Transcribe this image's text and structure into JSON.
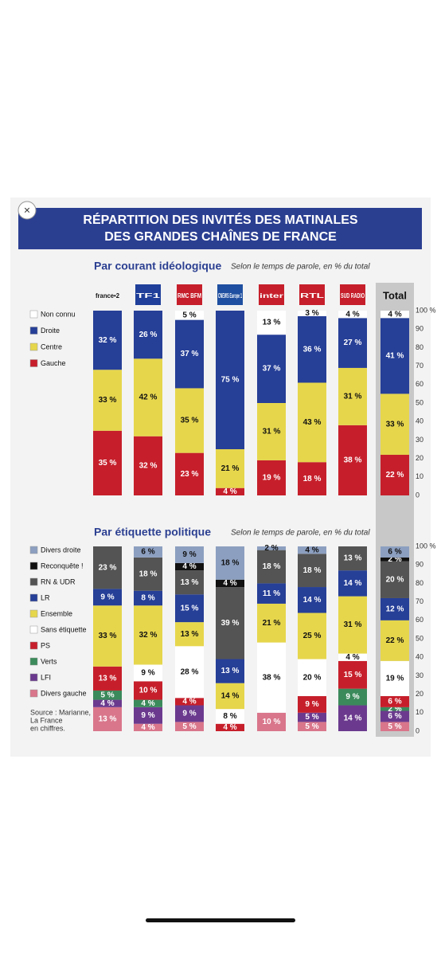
{
  "header": {
    "title": [
      "RÉPARTITION DES INVITÉS DES MATINALES",
      "DES GRANDES CHAÎNES DE FRANCE"
    ],
    "source": [
      "Source : Marianne,",
      "La France",
      "en chiffres."
    ]
  },
  "chart_data": [
    {
      "type": "stacked_bar",
      "title": "Par courant idéologique",
      "subtitle": "Selon le temps de parole, en % du total",
      "categories": [
        "france•2",
        "TF1",
        "RMC BFM",
        "CNEWS Europe 1",
        "inter",
        "RTL",
        "SUD RADIO",
        "Total"
      ],
      "ylim": [
        0,
        100
      ],
      "yticks": [
        0,
        10,
        20,
        30,
        40,
        50,
        60,
        70,
        80,
        90,
        {
          "value": 100,
          "label": "100 %"
        }
      ],
      "series": [
        {
          "name": "Non connu",
          "color": "#ffffff",
          "values": [
            0,
            0,
            5,
            0,
            13,
            3,
            4,
            4
          ],
          "value_labels": [
            null,
            null,
            "5 %",
            null,
            "13 %",
            "3 %",
            "4 %",
            "4 %"
          ]
        },
        {
          "name": "Droite",
          "color": "#263f97",
          "values": [
            32,
            26,
            37,
            75,
            37,
            36,
            27,
            41
          ],
          "value_labels": [
            "32 %",
            "26 %",
            "37 %",
            "75 %",
            "37 %",
            "36 %",
            "27 %",
            "41 %"
          ]
        },
        {
          "name": "Centre",
          "color": "#e6d64c",
          "values": [
            33,
            42,
            35,
            21,
            31,
            43,
            31,
            33
          ],
          "value_labels": [
            "33 %",
            "42 %",
            "35 %",
            "21 %",
            "31 %",
            "43 %",
            "31 %",
            "33 %"
          ]
        },
        {
          "name": "Gauche",
          "color": "#c61f2b",
          "values": [
            35,
            32,
            23,
            4,
            19,
            18,
            38,
            22
          ],
          "value_labels": [
            "35 %",
            "32 %",
            "23 %",
            "4 %",
            "19 %",
            "18 %",
            "38 %",
            "22 %"
          ]
        }
      ]
    },
    {
      "type": "stacked_bar",
      "title": "Par étiquette politique",
      "subtitle": "Selon le temps de parole, en % du total",
      "ylim": [
        0,
        100
      ],
      "yticks": [
        0,
        10,
        20,
        30,
        40,
        50,
        60,
        70,
        80,
        90,
        {
          "value": 100,
          "label": "100 %"
        }
      ],
      "series": [
        {
          "name": "Divers droite",
          "color": "#8c9fc0",
          "values": [
            0,
            6,
            9,
            18,
            2,
            4,
            0,
            6
          ],
          "value_labels": [
            null,
            "6 %",
            "9 %",
            "18 %",
            "2 %",
            "4 %",
            null,
            "6 %"
          ]
        },
        {
          "name": "Reconquête !",
          "color": "#111111",
          "values": [
            0,
            0,
            4,
            4,
            0,
            0,
            0,
            2
          ],
          "value_labels": [
            null,
            null,
            "4 %",
            "4 %",
            null,
            null,
            null,
            "2 %"
          ]
        },
        {
          "name": "RN & UDR",
          "color": "#545454",
          "values": [
            23,
            18,
            13,
            39,
            18,
            18,
            13,
            20
          ],
          "value_labels": [
            "23 %",
            "18 %",
            "13 %",
            "39 %",
            "18 %",
            "18 %",
            "13 %",
            "20 %"
          ]
        },
        {
          "name": "LR",
          "color": "#263f97",
          "values": [
            9,
            8,
            15,
            13,
            11,
            14,
            14,
            12
          ],
          "value_labels": [
            "9 %",
            "8 %",
            "15 %",
            "13 %",
            "11 %",
            "14 %",
            "14 %",
            "12 %"
          ]
        },
        {
          "name": "Ensemble",
          "color": "#e6d64c",
          "values": [
            33,
            32,
            13,
            14,
            21,
            25,
            31,
            22
          ],
          "value_labels": [
            "33 %",
            "32 %",
            "13 %",
            "14 %",
            "21 %",
            "25 %",
            "31 %",
            "22 %"
          ]
        },
        {
          "name": "Sans étiquette",
          "color": "#ffffff",
          "values": [
            0,
            9,
            28,
            8,
            38,
            20,
            4,
            19
          ],
          "value_labels": [
            null,
            "9 %",
            "28 %",
            "8 %",
            "38 %",
            "20 %",
            "4 %",
            "19 %"
          ]
        },
        {
          "name": "PS",
          "color": "#c61f2b",
          "values": [
            13,
            10,
            4,
            4,
            0,
            9,
            15,
            6
          ],
          "value_labels": [
            "13 %",
            "10 %",
            "4 %",
            "4 %",
            null,
            "9 %",
            "15 %",
            "6 %"
          ]
        },
        {
          "name": "Verts",
          "color": "#3b8a5b",
          "values": [
            5,
            4,
            0,
            0,
            0,
            0,
            9,
            2
          ],
          "value_labels": [
            "5 %",
            "4 %",
            null,
            null,
            null,
            null,
            "9 %",
            "2 %"
          ]
        },
        {
          "name": "LFI",
          "color": "#6b3a8e",
          "values": [
            4,
            9,
            9,
            0,
            0,
            5,
            14,
            6
          ],
          "value_labels": [
            "4 %",
            "9 %",
            "9 %",
            null,
            null,
            "5 %",
            "14 %",
            "6 %"
          ]
        },
        {
          "name": "Divers gauche",
          "color": "#d9768b",
          "values": [
            13,
            4,
            5,
            0,
            10,
            5,
            0,
            5
          ],
          "value_labels": [
            "13 %",
            "4 %",
            "5 %",
            null,
            "10 %",
            "5 %",
            null,
            "5 %"
          ]
        }
      ]
    }
  ]
}
